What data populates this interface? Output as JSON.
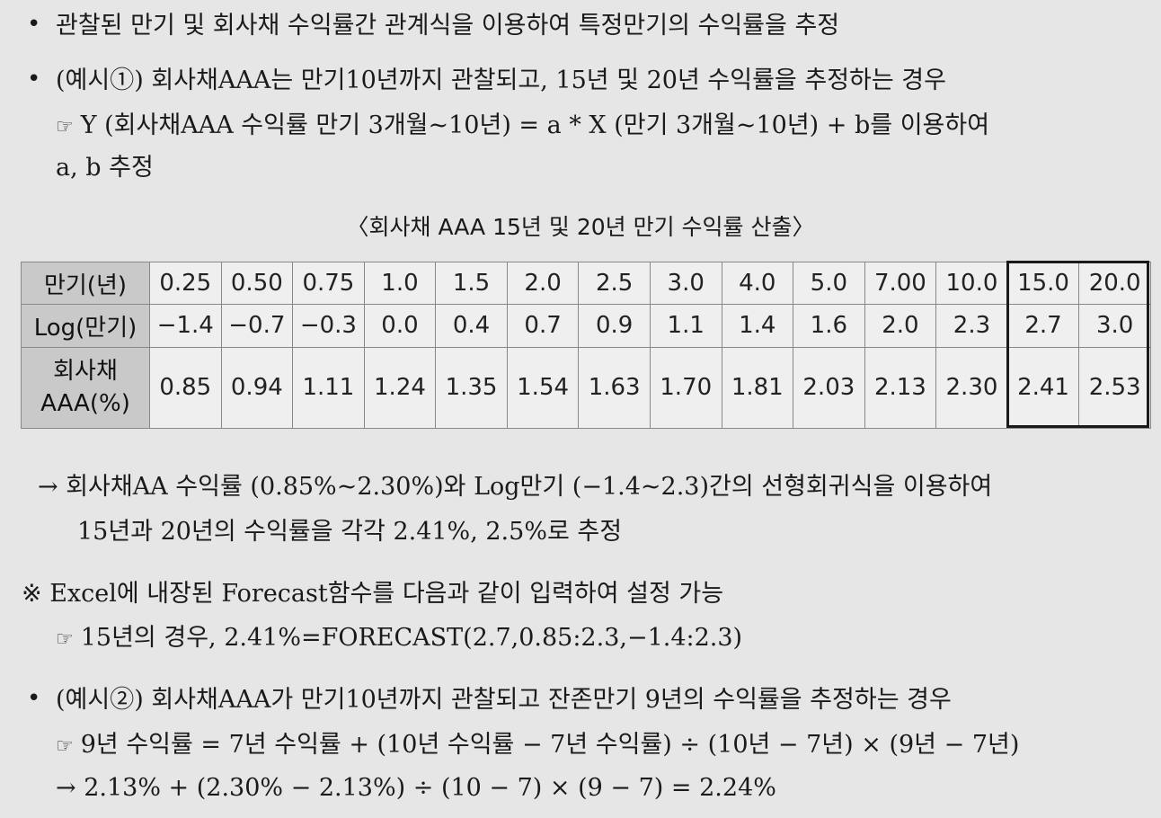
{
  "bullet_symbol": "•",
  "hand_symbol": "☞",
  "lines": {
    "b1": "관찰된 만기 및 회사채 수익률간 관계식을 이용하여 특정만기의 수익률을 추정",
    "b2": "(예시①) 회사채AAA는 만기10년까지 관찰되고, 15년 및 20년 수익률을 추정하는 경우",
    "b2_sub1": "Y (회사채AAA 수익률 만기 3개월~10년) = a * X (만기 3개월~10년) + b를 이용하여",
    "b2_sub2": "a, b 추정",
    "arrow1": "→ 회사채AA 수익률 (0.85%~2.30%)와 Log만기 (−1.4~2.3)간의 선형회귀식을 이용하여",
    "arrow2": "15년과 20년의 수익률을 각각 2.41%, 2.5%로 추정",
    "note": "※ Excel에 내장된 Forecast함수를 다음과 같이 입력하여 설정 가능",
    "note_sub": "15년의 경우, 2.41%=FORECAST(2.7,0.85:2.3,−1.4:2.3)",
    "b3": "(예시②) 회사채AAA가 만기10년까지 관찰되고 잔존만기 9년의 수익률을 추정하는 경우",
    "b3_sub1": "9년 수익률 = 7년 수익률 + (10년 수익률 − 7년 수익률) ÷ (10년 − 7년) × (9년 − 7년)",
    "b3_sub2": "→ 2.13% + (2.30% − 2.13%) ÷ (10 − 7) × (9 − 7) = 2.24%"
  },
  "table": {
    "caption": "〈회사채 AAA 15년 및 20년 만기 수익률 산출〉",
    "row1": {
      "header": "만기(년)",
      "cells": [
        "0.25",
        "0.50",
        "0.75",
        "1.0",
        "1.5",
        "2.0",
        "2.5",
        "3.0",
        "4.0",
        "5.0",
        "7.00",
        "10.0",
        "15.0",
        "20.0"
      ]
    },
    "row2": {
      "header": "Log(만기)",
      "cells": [
        "−1.4",
        "−0.7",
        "−0.3",
        "0.0",
        "0.4",
        "0.7",
        "0.9",
        "1.1",
        "1.4",
        "1.6",
        "2.0",
        "2.3",
        "2.7",
        "3.0"
      ]
    },
    "row3": {
      "header_line1": "회사채",
      "header_line2": "AAA(%)",
      "cells": [
        "0.85",
        "0.94",
        "1.11",
        "1.24",
        "1.35",
        "1.54",
        "1.63",
        "1.70",
        "1.81",
        "2.03",
        "2.13",
        "2.30",
        "2.41",
        "2.53"
      ]
    }
  }
}
